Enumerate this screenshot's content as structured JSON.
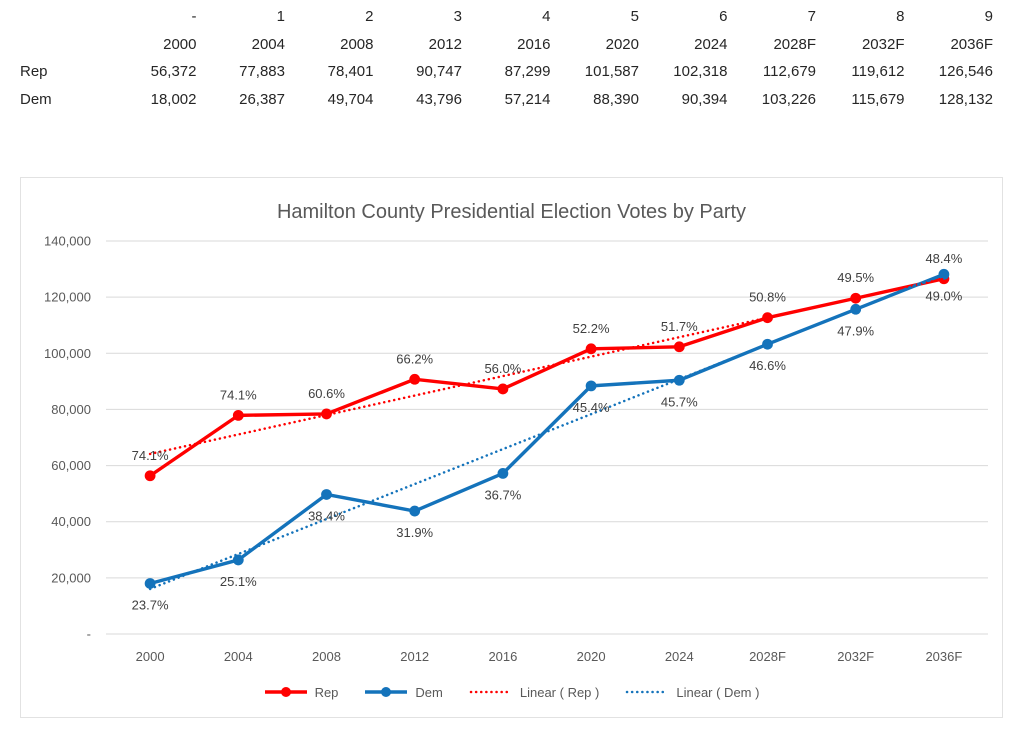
{
  "table": {
    "row_labels": [
      "",
      "",
      "Rep",
      "Dem"
    ],
    "rows": [
      [
        "-",
        "1",
        "2",
        "3",
        "4",
        "5",
        "6",
        "7",
        "8",
        "9"
      ],
      [
        "2000",
        "2004",
        "2008",
        "2012",
        "2016",
        "2020",
        "2024",
        "2028F",
        "2032F",
        "2036F"
      ],
      [
        "56,372",
        "77,883",
        "78,401",
        "90,747",
        "87,299",
        "101,587",
        "102,318",
        "112,679",
        "119,612",
        "126,546"
      ],
      [
        "18,002",
        "26,387",
        "49,704",
        "43,796",
        "57,214",
        "88,390",
        "90,394",
        "103,226",
        "115,679",
        "128,132"
      ]
    ]
  },
  "chart_data": {
    "type": "line",
    "title": "Hamilton County Presidential Election Votes by Party",
    "categories": [
      "2000",
      "2004",
      "2008",
      "2012",
      "2016",
      "2020",
      "2024",
      "2028F",
      "2032F",
      "2036F"
    ],
    "series": [
      {
        "name": "Rep",
        "color": "#ff0000",
        "values": [
          56372,
          77883,
          78401,
          90747,
          87299,
          101587,
          102318,
          112679,
          119612,
          126546
        ],
        "point_labels": [
          "74.1%",
          "74.1%",
          "60.6%",
          "66.2%",
          "56.0%",
          "52.2%",
          "51.7%",
          "50.8%",
          "49.5%",
          "48.4%"
        ],
        "label_position": "above"
      },
      {
        "name": "Dem",
        "color": "#1473bb",
        "values": [
          18002,
          26387,
          49704,
          43796,
          57214,
          88390,
          90394,
          103226,
          115679,
          128132
        ],
        "point_labels": [
          "23.7%",
          "25.1%",
          "38.4%",
          "31.9%",
          "36.7%",
          "45.4%",
          "45.7%",
          "46.6%",
          "47.9%",
          "49.0%"
        ],
        "label_position": "below"
      }
    ],
    "trendlines": [
      {
        "name": "Linear ( Rep )",
        "series": "Rep",
        "color": "#ff0000",
        "style": "dotted"
      },
      {
        "name": "Linear ( Dem )",
        "series": "Dem",
        "color": "#1473bb",
        "style": "dotted"
      }
    ],
    "y_axis": {
      "min": 0,
      "max": 140000,
      "tick_step": 20000,
      "ticks_top_to_bottom": [
        "140,000",
        "120,000",
        "100,000",
        "80,000",
        "60,000",
        "40,000",
        "20,000",
        "-"
      ]
    },
    "grid": true,
    "legend_position": "bottom",
    "colors": {
      "gridline": "#d9d9d9",
      "axis_text": "#595959",
      "title_text": "#595959",
      "data_label_text": "#404040",
      "legend_text": "#595959",
      "table_text": "#262626",
      "chart_border": "#e2e2e2"
    }
  }
}
